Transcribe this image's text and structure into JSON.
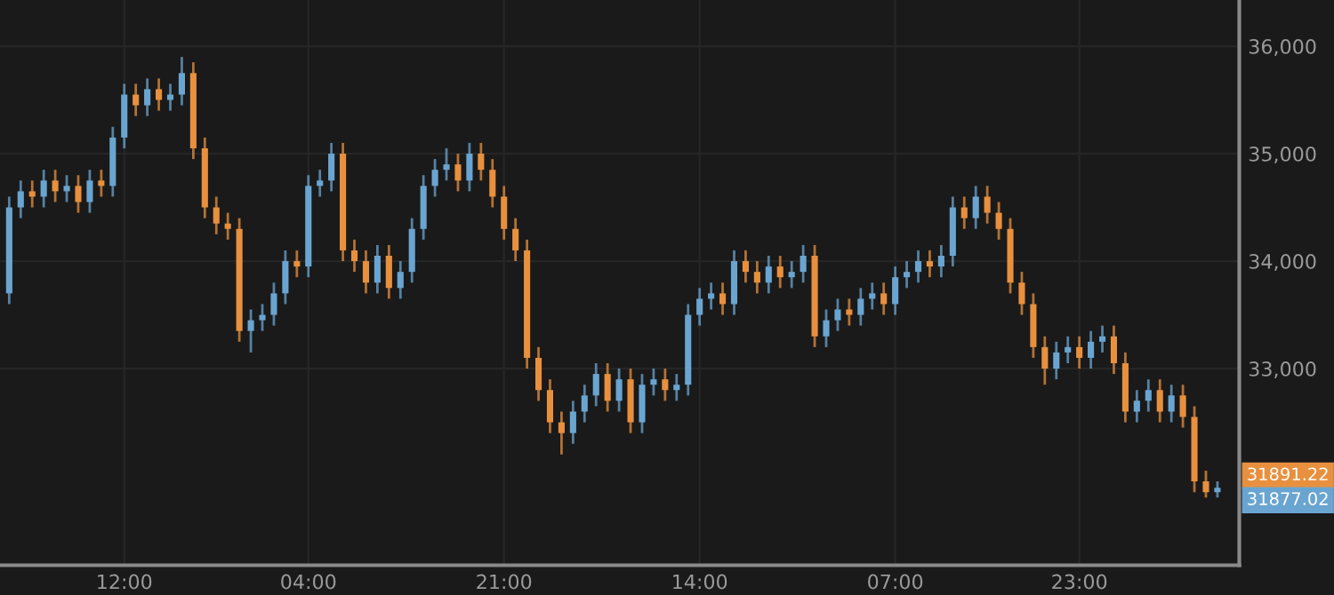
{
  "chart_data": {
    "type": "candlestick",
    "categories": [
      null,
      null,
      null,
      null,
      null,
      null,
      null,
      null,
      null,
      null,
      "12:00",
      null,
      null,
      null,
      null,
      null,
      null,
      null,
      null,
      null,
      null,
      null,
      null,
      null,
      null,
      null,
      "04:00",
      null,
      null,
      null,
      null,
      null,
      null,
      null,
      null,
      null,
      null,
      null,
      null,
      null,
      null,
      null,
      null,
      "21:00",
      null,
      null,
      null,
      null,
      null,
      null,
      null,
      null,
      null,
      null,
      null,
      null,
      null,
      null,
      null,
      null,
      "14:00",
      null,
      null,
      null,
      null,
      null,
      null,
      null,
      null,
      null,
      null,
      null,
      null,
      null,
      null,
      null,
      null,
      "07:00",
      null,
      null,
      null,
      null,
      null,
      null,
      null,
      null,
      null,
      null,
      null,
      null,
      null,
      null,
      null,
      "23:00",
      null,
      null,
      null,
      null,
      null,
      null,
      null,
      null,
      null,
      null,
      null,
      null
    ],
    "ohlc": [
      [
        33700,
        34600,
        33600,
        34500
      ],
      [
        34500,
        34750,
        34400,
        34650
      ],
      [
        34650,
        34750,
        34500,
        34600
      ],
      [
        34600,
        34850,
        34500,
        34750
      ],
      [
        34750,
        34850,
        34550,
        34650
      ],
      [
        34650,
        34800,
        34550,
        34700
      ],
      [
        34700,
        34800,
        34450,
        34550
      ],
      [
        34550,
        34850,
        34450,
        34750
      ],
      [
        34750,
        34850,
        34600,
        34700
      ],
      [
        34700,
        35250,
        34600,
        35150
      ],
      [
        35150,
        35650,
        35050,
        35550
      ],
      [
        35550,
        35650,
        35350,
        35450
      ],
      [
        35450,
        35700,
        35350,
        35600
      ],
      [
        35600,
        35700,
        35400,
        35500
      ],
      [
        35500,
        35650,
        35400,
        35550
      ],
      [
        35550,
        35900,
        35450,
        35750
      ],
      [
        35750,
        35850,
        34950,
        35050
      ],
      [
        35050,
        35150,
        34400,
        34500
      ],
      [
        34500,
        34600,
        34250,
        34350
      ],
      [
        34350,
        34450,
        34200,
        34300
      ],
      [
        34300,
        34400,
        33250,
        33350
      ],
      [
        33350,
        33550,
        33150,
        33450
      ],
      [
        33450,
        33600,
        33350,
        33500
      ],
      [
        33500,
        33800,
        33400,
        33700
      ],
      [
        33700,
        34100,
        33600,
        34000
      ],
      [
        34000,
        34100,
        33850,
        33950
      ],
      [
        33950,
        34800,
        33850,
        34700
      ],
      [
        34700,
        34850,
        34600,
        34750
      ],
      [
        34750,
        35100,
        34650,
        35000
      ],
      [
        35000,
        35100,
        34000,
        34100
      ],
      [
        34100,
        34200,
        33900,
        34000
      ],
      [
        34000,
        34100,
        33700,
        33800
      ],
      [
        33800,
        34150,
        33700,
        34050
      ],
      [
        34050,
        34150,
        33650,
        33750
      ],
      [
        33750,
        34000,
        33650,
        33900
      ],
      [
        33900,
        34400,
        33800,
        34300
      ],
      [
        34300,
        34800,
        34200,
        34700
      ],
      [
        34700,
        34950,
        34600,
        34850
      ],
      [
        34850,
        35050,
        34750,
        34900
      ],
      [
        34900,
        35000,
        34650,
        34750
      ],
      [
        34750,
        35100,
        34650,
        35000
      ],
      [
        35000,
        35100,
        34750,
        34850
      ],
      [
        34850,
        34950,
        34500,
        34600
      ],
      [
        34600,
        34700,
        34200,
        34300
      ],
      [
        34300,
        34400,
        34000,
        34100
      ],
      [
        34100,
        34200,
        33000,
        33100
      ],
      [
        33100,
        33200,
        32700,
        32800
      ],
      [
        32800,
        32900,
        32400,
        32500
      ],
      [
        32500,
        32600,
        32200,
        32400
      ],
      [
        32400,
        32700,
        32300,
        32600
      ],
      [
        32600,
        32850,
        32500,
        32750
      ],
      [
        32750,
        33050,
        32650,
        32950
      ],
      [
        32950,
        33050,
        32600,
        32700
      ],
      [
        32700,
        33000,
        32600,
        32900
      ],
      [
        32900,
        33000,
        32400,
        32500
      ],
      [
        32500,
        32950,
        32400,
        32850
      ],
      [
        32850,
        33000,
        32750,
        32900
      ],
      [
        32900,
        33000,
        32700,
        32800
      ],
      [
        32800,
        32950,
        32700,
        32850
      ],
      [
        32850,
        33600,
        32750,
        33500
      ],
      [
        33500,
        33750,
        33400,
        33650
      ],
      [
        33650,
        33800,
        33550,
        33700
      ],
      [
        33700,
        33800,
        33500,
        33600
      ],
      [
        33600,
        34100,
        33500,
        34000
      ],
      [
        34000,
        34100,
        33800,
        33900
      ],
      [
        33900,
        34000,
        33700,
        33800
      ],
      [
        33800,
        34050,
        33700,
        33950
      ],
      [
        33950,
        34050,
        33750,
        33850
      ],
      [
        33850,
        34000,
        33750,
        33900
      ],
      [
        33900,
        34150,
        33800,
        34050
      ],
      [
        34050,
        34150,
        33200,
        33300
      ],
      [
        33300,
        33550,
        33200,
        33450
      ],
      [
        33450,
        33650,
        33350,
        33550
      ],
      [
        33550,
        33650,
        33400,
        33500
      ],
      [
        33500,
        33750,
        33400,
        33650
      ],
      [
        33650,
        33800,
        33550,
        33700
      ],
      [
        33700,
        33800,
        33500,
        33600
      ],
      [
        33600,
        33950,
        33500,
        33850
      ],
      [
        33850,
        34000,
        33750,
        33900
      ],
      [
        33900,
        34100,
        33800,
        34000
      ],
      [
        34000,
        34100,
        33850,
        33950
      ],
      [
        33950,
        34150,
        33850,
        34050
      ],
      [
        34050,
        34600,
        33950,
        34500
      ],
      [
        34500,
        34600,
        34300,
        34400
      ],
      [
        34400,
        34700,
        34300,
        34600
      ],
      [
        34600,
        34700,
        34350,
        34450
      ],
      [
        34450,
        34550,
        34200,
        34300
      ],
      [
        34300,
        34400,
        33700,
        33800
      ],
      [
        33800,
        33900,
        33500,
        33600
      ],
      [
        33600,
        33700,
        33100,
        33200
      ],
      [
        33200,
        33300,
        32850,
        33000
      ],
      [
        33000,
        33250,
        32900,
        33150
      ],
      [
        33150,
        33300,
        33050,
        33200
      ],
      [
        33200,
        33300,
        33000,
        33100
      ],
      [
        33100,
        33350,
        33000,
        33250
      ],
      [
        33250,
        33400,
        33150,
        33300
      ],
      [
        33300,
        33400,
        32950,
        33050
      ],
      [
        33050,
        33150,
        32500,
        32600
      ],
      [
        32600,
        32800,
        32500,
        32700
      ],
      [
        32700,
        32900,
        32600,
        32800
      ],
      [
        32800,
        32900,
        32500,
        32600
      ],
      [
        32600,
        32850,
        32500,
        32750
      ],
      [
        32750,
        32850,
        32450,
        32550
      ],
      [
        32550,
        32650,
        31850,
        31950
      ],
      [
        31950,
        32050,
        31800,
        31850
      ],
      [
        31850,
        31950,
        31800,
        31890
      ]
    ],
    "colors": [
      "#6aa5d1",
      "#6aa5d1",
      "#e8903e",
      "#6aa5d1",
      "#e8903e",
      "#6aa5d1",
      "#e8903e",
      "#6aa5d1",
      "#e8903e",
      "#6aa5d1",
      "#6aa5d1",
      "#e8903e",
      "#6aa5d1",
      "#e8903e",
      "#6aa5d1",
      "#6aa5d1",
      "#e8903e",
      "#e8903e",
      "#e8903e",
      "#e8903e",
      "#e8903e",
      "#6aa5d1",
      "#6aa5d1",
      "#6aa5d1",
      "#6aa5d1",
      "#e8903e",
      "#6aa5d1",
      "#6aa5d1",
      "#6aa5d1",
      "#e8903e",
      "#e8903e",
      "#e8903e",
      "#6aa5d1",
      "#e8903e",
      "#6aa5d1",
      "#6aa5d1",
      "#6aa5d1",
      "#6aa5d1",
      "#6aa5d1",
      "#e8903e",
      "#6aa5d1",
      "#e8903e",
      "#e8903e",
      "#e8903e",
      "#e8903e",
      "#e8903e",
      "#e8903e",
      "#e8903e",
      "#e8903e",
      "#6aa5d1",
      "#6aa5d1",
      "#6aa5d1",
      "#e8903e",
      "#6aa5d1",
      "#e8903e",
      "#6aa5d1",
      "#6aa5d1",
      "#e8903e",
      "#6aa5d1",
      "#6aa5d1",
      "#6aa5d1",
      "#6aa5d1",
      "#e8903e",
      "#6aa5d1",
      "#e8903e",
      "#e8903e",
      "#6aa5d1",
      "#e8903e",
      "#6aa5d1",
      "#6aa5d1",
      "#e8903e",
      "#6aa5d1",
      "#6aa5d1",
      "#e8903e",
      "#6aa5d1",
      "#6aa5d1",
      "#e8903e",
      "#6aa5d1",
      "#6aa5d1",
      "#6aa5d1",
      "#e8903e",
      "#6aa5d1",
      "#6aa5d1",
      "#e8903e",
      "#6aa5d1",
      "#e8903e",
      "#e8903e",
      "#e8903e",
      "#e8903e",
      "#e8903e",
      "#e8903e",
      "#6aa5d1",
      "#6aa5d1",
      "#e8903e",
      "#6aa5d1",
      "#6aa5d1",
      "#e8903e",
      "#e8903e",
      "#6aa5d1",
      "#6aa5d1",
      "#e8903e",
      "#6aa5d1",
      "#e8903e",
      "#e8903e",
      "#e8903e",
      "#6aa5d1"
    ],
    "ylim": [
      31170,
      36430
    ],
    "yticks": [
      {
        "value": 33000,
        "label": "33,000"
      },
      {
        "value": 34000,
        "label": "34,000"
      },
      {
        "value": 35000,
        "label": "35,000"
      },
      {
        "value": 36000,
        "label": "36,000"
      }
    ],
    "grid": true,
    "annotations": [
      "31891.22",
      "31877.02"
    ]
  }
}
